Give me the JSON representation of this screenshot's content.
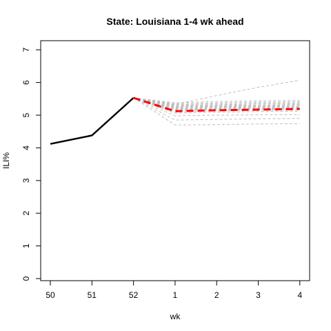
{
  "chart_data": {
    "type": "line",
    "title": "State: Louisiana 1-4 wk ahead",
    "xlabel": "wk",
    "ylabel": "ILI%",
    "categories": [
      "50",
      "51",
      "52",
      "1",
      "2",
      "3",
      "4"
    ],
    "ylim": [
      0,
      7
    ],
    "yticks": [
      0,
      1,
      2,
      3,
      4,
      5,
      6,
      7
    ],
    "grid": false,
    "colors": {
      "observed": "#000000",
      "forecast_mean": "#ff0000",
      "forecast_samples": "#bebebe"
    },
    "series": [
      {
        "role": "observed",
        "x": [
          "50",
          "51",
          "52"
        ],
        "values": [
          4.12,
          4.38,
          5.53
        ]
      },
      {
        "role": "forecast_mean",
        "x": [
          "52",
          "1",
          "2",
          "3",
          "4"
        ],
        "values": [
          5.53,
          5.12,
          5.15,
          5.17,
          5.19
        ]
      }
    ],
    "forecast_samples": [
      [
        5.53,
        5.33,
        5.6,
        5.85,
        6.07
      ],
      [
        5.53,
        5.38,
        5.42,
        5.44,
        5.45
      ],
      [
        5.53,
        5.35,
        5.38,
        5.4,
        5.41
      ],
      [
        5.53,
        5.32,
        5.35,
        5.37,
        5.38
      ],
      [
        5.53,
        5.3,
        5.32,
        5.34,
        5.35
      ],
      [
        5.53,
        5.28,
        5.3,
        5.31,
        5.33
      ],
      [
        5.53,
        5.26,
        5.28,
        5.29,
        5.3
      ],
      [
        5.53,
        5.24,
        5.26,
        5.27,
        5.28
      ],
      [
        5.53,
        5.22,
        5.24,
        5.25,
        5.26
      ],
      [
        5.53,
        5.2,
        5.22,
        5.24,
        5.25
      ],
      [
        5.53,
        5.18,
        5.2,
        5.22,
        5.23
      ],
      [
        5.53,
        5.16,
        5.18,
        5.2,
        5.21
      ],
      [
        5.53,
        5.14,
        5.16,
        5.18,
        5.19
      ],
      [
        5.53,
        5.1,
        5.13,
        5.15,
        5.16
      ],
      [
        5.53,
        5.06,
        5.09,
        5.11,
        5.12
      ],
      [
        5.53,
        4.98,
        5.0,
        5.01,
        5.02
      ],
      [
        5.53,
        4.85,
        4.87,
        4.89,
        4.9
      ],
      [
        5.53,
        4.7,
        4.71,
        4.73,
        4.74
      ]
    ]
  }
}
